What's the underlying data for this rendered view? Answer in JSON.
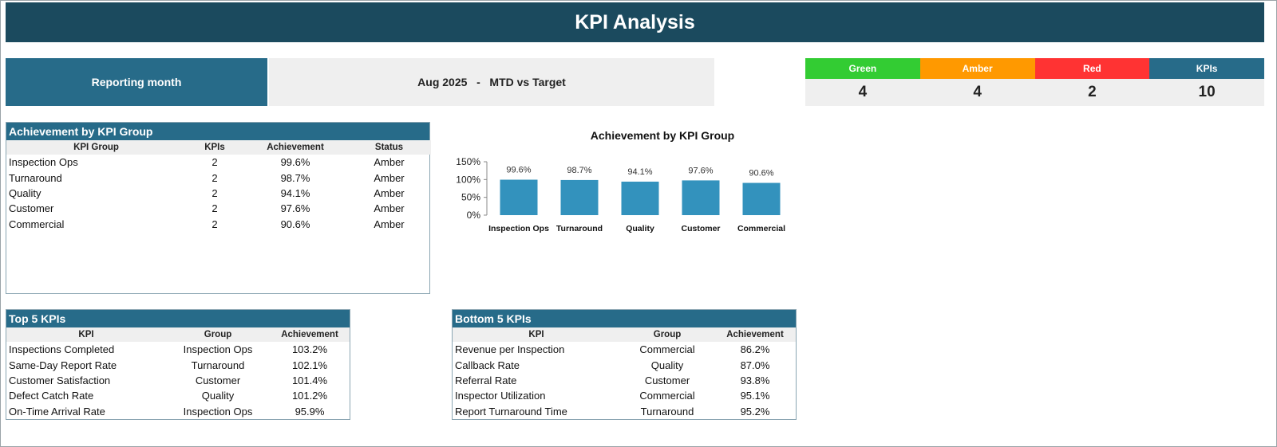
{
  "header": {
    "title": "KPI Analysis"
  },
  "reporting": {
    "label": "Reporting month",
    "value": "Aug 2025   -   MTD vs Target"
  },
  "status_cards": [
    {
      "label": "Green",
      "value": "4",
      "color": "#33cc33"
    },
    {
      "label": "Amber",
      "value": "4",
      "color": "#ff9900"
    },
    {
      "label": "Red",
      "value": "2",
      "color": "#ff3333"
    },
    {
      "label": "KPIs",
      "value": "10",
      "color": "#276b89"
    }
  ],
  "group_table": {
    "title": "Achievement by KPI Group",
    "columns": [
      "KPI Group",
      "KPIs",
      "Achievement",
      "Status"
    ],
    "rows": [
      [
        "Inspection Ops",
        "2",
        "99.6%",
        "Amber"
      ],
      [
        "Turnaround",
        "2",
        "98.7%",
        "Amber"
      ],
      [
        "Quality",
        "2",
        "94.1%",
        "Amber"
      ],
      [
        "Customer",
        "2",
        "97.6%",
        "Amber"
      ],
      [
        "Commercial",
        "2",
        "90.6%",
        "Amber"
      ]
    ]
  },
  "chart_data": {
    "type": "bar",
    "title": "Achievement by KPI Group",
    "categories": [
      "Inspection Ops",
      "Turnaround",
      "Quality",
      "Customer",
      "Commercial"
    ],
    "values": [
      99.6,
      98.7,
      94.1,
      97.6,
      90.6
    ],
    "data_labels": [
      "99.6%",
      "98.7%",
      "94.1%",
      "97.6%",
      "90.6%"
    ],
    "yticks": [
      "0%",
      "50%",
      "100%",
      "150%"
    ],
    "ylim": [
      0,
      150
    ],
    "bar_color": "#3392bd",
    "grid": false,
    "xlabel": "",
    "ylabel": ""
  },
  "top5": {
    "title": "Top 5 KPIs",
    "columns": [
      "KPI",
      "Group",
      "Achievement"
    ],
    "rows": [
      [
        "Inspections Completed",
        "Inspection Ops",
        "103.2%"
      ],
      [
        "Same-Day Report Rate",
        "Turnaround",
        "102.1%"
      ],
      [
        "Customer Satisfaction",
        "Customer",
        "101.4%"
      ],
      [
        "Defect Catch Rate",
        "Quality",
        "101.2%"
      ],
      [
        "On-Time Arrival Rate",
        "Inspection Ops",
        "95.9%"
      ]
    ]
  },
  "bottom5": {
    "title": "Bottom 5 KPIs",
    "columns": [
      "KPI",
      "Group",
      "Achievement"
    ],
    "rows": [
      [
        "Revenue per Inspection",
        "Commercial",
        "86.2%"
      ],
      [
        "Callback Rate",
        "Quality",
        "87.0%"
      ],
      [
        "Referral Rate",
        "Customer",
        "93.8%"
      ],
      [
        "Inspector Utilization",
        "Commercial",
        "95.1%"
      ],
      [
        "Report Turnaround Time",
        "Turnaround",
        "95.2%"
      ]
    ]
  }
}
